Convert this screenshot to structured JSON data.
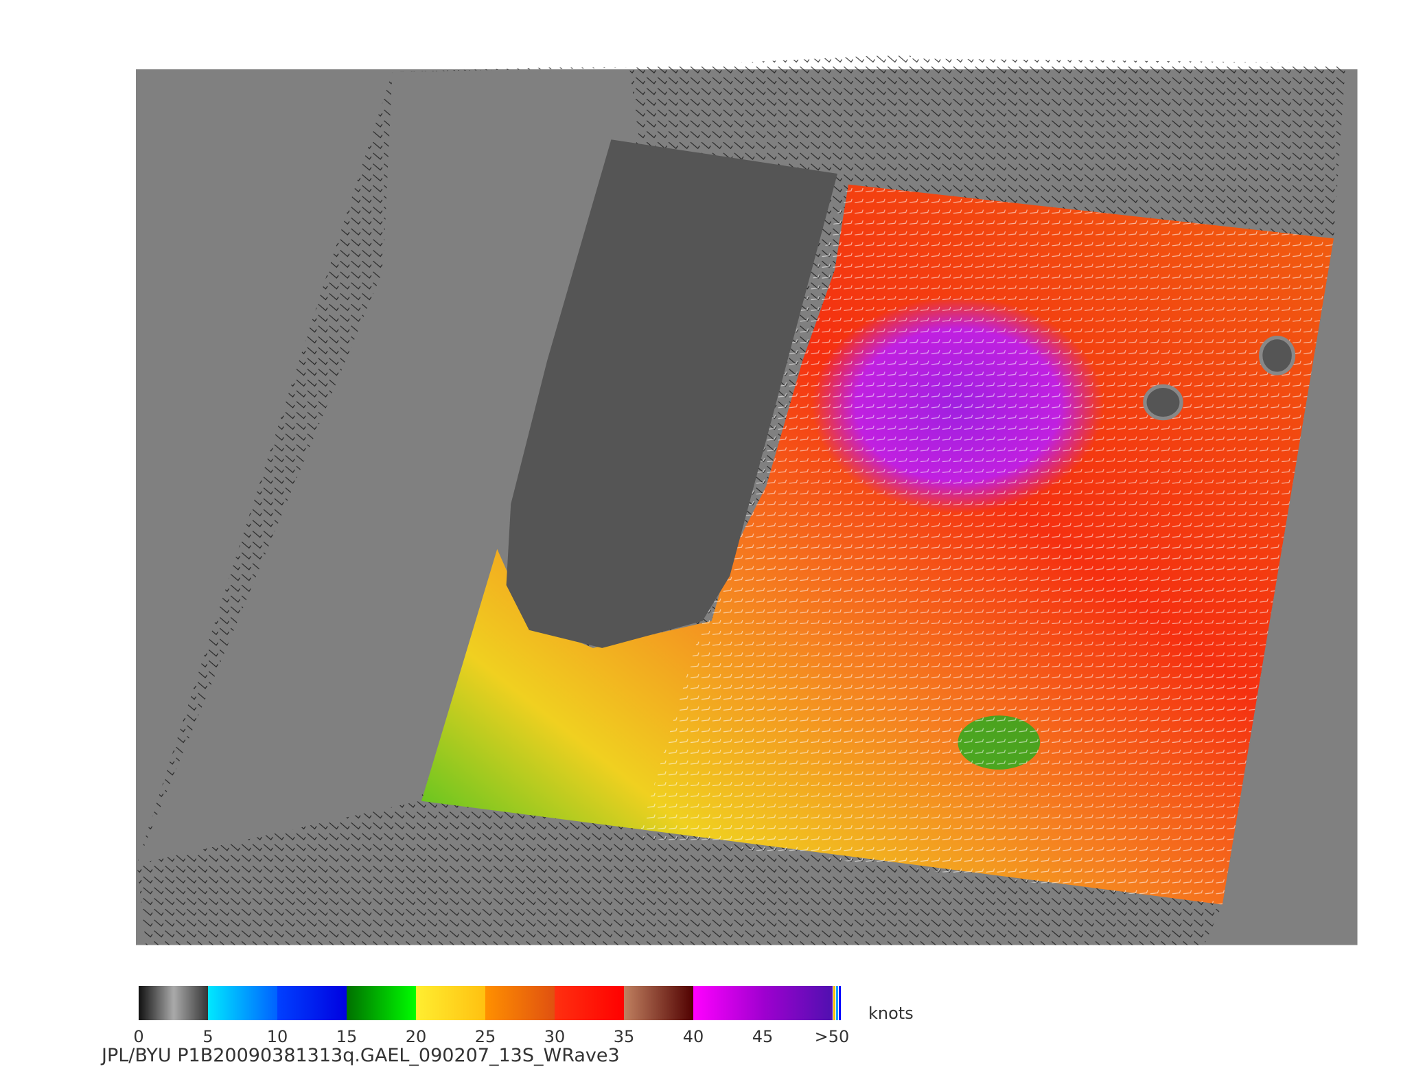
{
  "colorbar": {
    "ticks": [
      "0",
      "5",
      "10",
      "15",
      "20",
      "25",
      "30",
      "35",
      "40",
      "45",
      ">50"
    ],
    "unit": "knots"
  },
  "footer": "JPL/BYU  P1B20090381313q.GAEL_090207_13S_WRave3"
}
